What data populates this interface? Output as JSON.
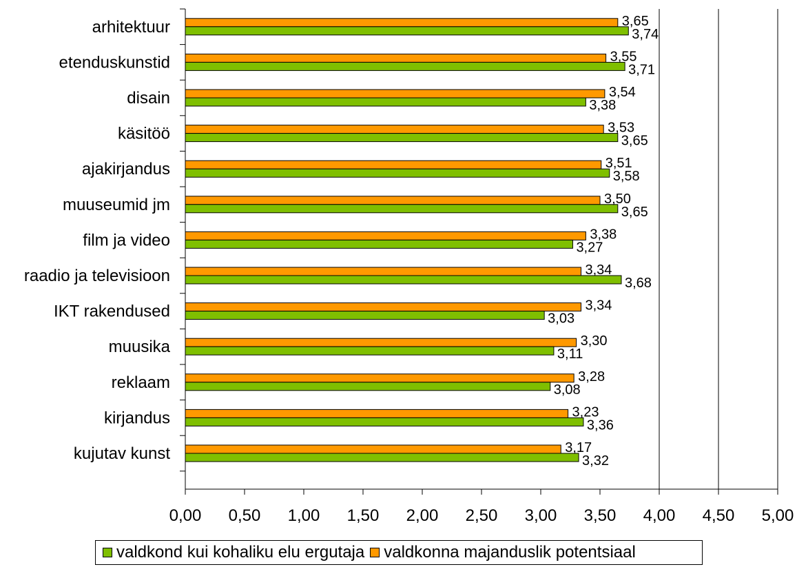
{
  "chart_data": {
    "type": "bar",
    "orientation": "horizontal",
    "categories": [
      "arhitektuur",
      "etenduskunstid",
      "disain",
      "käsitöö",
      "ajakirjandus",
      "muuseumid jm",
      "film ja video",
      "raadio ja televisioon",
      "IKT rakendused",
      "muusika",
      "reklaam",
      "kirjandus",
      "kujutav kunst"
    ],
    "series": [
      {
        "name": "valdkond kui kohaliku elu ergutaja",
        "color": "#7fbf00",
        "values": [
          3.74,
          3.71,
          3.38,
          3.65,
          3.58,
          3.65,
          3.27,
          3.68,
          3.03,
          3.11,
          3.08,
          3.36,
          3.32
        ],
        "labels": [
          "3,74",
          "3,71",
          "3,38",
          "3,65",
          "3,58",
          "3,65",
          "3,27",
          "3,68",
          "3,03",
          "3,11",
          "3,08",
          "3,36",
          "3,32"
        ]
      },
      {
        "name": "valdkonna majanduslik potentsiaal",
        "color": "#ff9900",
        "values": [
          3.65,
          3.55,
          3.54,
          3.53,
          3.51,
          3.5,
          3.38,
          3.34,
          3.34,
          3.3,
          3.28,
          3.23,
          3.17
        ],
        "labels": [
          "3,65",
          "3,55",
          "3,54",
          "3,53",
          "3,51",
          "3,50",
          "3,38",
          "3,34",
          "3,34",
          "3,30",
          "3,28",
          "3,23",
          "3,17"
        ]
      }
    ],
    "xlim": [
      0,
      5
    ],
    "xticks": [
      "0,00",
      "0,50",
      "1,00",
      "1,50",
      "2,00",
      "2,50",
      "3,00",
      "3,50",
      "4,00",
      "4,50",
      "5,00"
    ],
    "gridlines_at": [
      4.0,
      4.5,
      5.0
    ],
    "legend": "bottom"
  },
  "legend": {
    "items": [
      "valdkond kui kohaliku elu ergutaja",
      "valdkonna majanduslik potentsiaal"
    ]
  }
}
